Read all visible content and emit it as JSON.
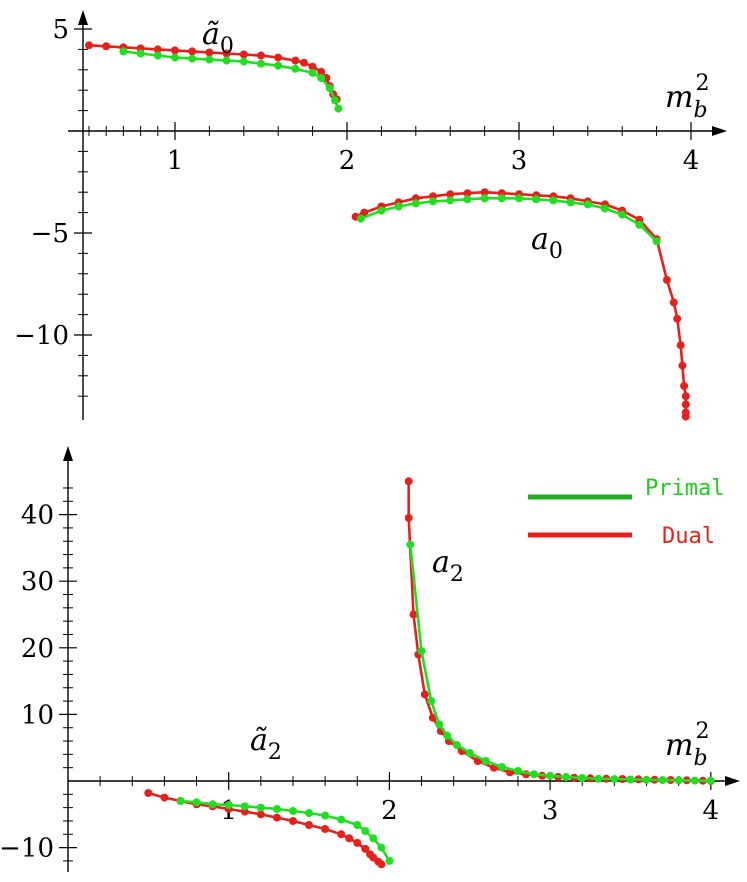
{
  "chart_data": [
    {
      "type": "line",
      "xlabel": "m_b^2",
      "ylabel": "",
      "xlim": [
        0.45,
        4.1
      ],
      "ylim": [
        -14,
        5.5
      ],
      "x_ticks": [
        1,
        2,
        3,
        4
      ],
      "y_ticks": [
        5,
        -5,
        -10
      ],
      "x_tick_labels": [
        "1",
        "2",
        "3",
        "4"
      ],
      "y_tick_labels": [
        "5",
        "−5",
        "−10"
      ],
      "curve_labels": [
        {
          "text_base": "ã",
          "text_sub": "0",
          "near_series": "ã0"
        },
        {
          "text_base": "a",
          "text_sub": "0",
          "near_series": "a0"
        }
      ],
      "axis_label_base": "m",
      "axis_label_sub": "b",
      "axis_label_sup": "2",
      "series": [
        {
          "group": "ã0",
          "method": "Dual",
          "color": "#e8201c",
          "points": [
            [
              0.5,
              4.2
            ],
            [
              0.6,
              4.15
            ],
            [
              0.7,
              4.1
            ],
            [
              0.8,
              4.05
            ],
            [
              0.9,
              4.0
            ],
            [
              1.0,
              3.95
            ],
            [
              1.1,
              3.9
            ],
            [
              1.2,
              3.85
            ],
            [
              1.3,
              3.8
            ],
            [
              1.4,
              3.75
            ],
            [
              1.5,
              3.7
            ],
            [
              1.6,
              3.6
            ],
            [
              1.7,
              3.45
            ],
            [
              1.75,
              3.35
            ],
            [
              1.8,
              3.15
            ],
            [
              1.85,
              2.9
            ],
            [
              1.88,
              2.6
            ],
            [
              1.9,
              2.2
            ],
            [
              1.92,
              1.8
            ],
            [
              1.94,
              1.55
            ]
          ]
        },
        {
          "group": "ã0",
          "method": "Primal",
          "color": "#22dd22",
          "points": [
            [
              0.7,
              3.9
            ],
            [
              0.8,
              3.8
            ],
            [
              0.9,
              3.7
            ],
            [
              1.0,
              3.6
            ],
            [
              1.1,
              3.55
            ],
            [
              1.2,
              3.5
            ],
            [
              1.3,
              3.45
            ],
            [
              1.4,
              3.4
            ],
            [
              1.5,
              3.3
            ],
            [
              1.6,
              3.2
            ],
            [
              1.7,
              3.05
            ],
            [
              1.8,
              2.85
            ],
            [
              1.85,
              2.6
            ],
            [
              1.9,
              2.1
            ],
            [
              1.93,
              1.5
            ],
            [
              1.95,
              1.1
            ]
          ]
        },
        {
          "group": "a0",
          "method": "Dual",
          "color": "#e8201c",
          "points": [
            [
              2.05,
              -4.2
            ],
            [
              2.1,
              -4.0
            ],
            [
              2.2,
              -3.7
            ],
            [
              2.3,
              -3.5
            ],
            [
              2.4,
              -3.3
            ],
            [
              2.5,
              -3.2
            ],
            [
              2.6,
              -3.1
            ],
            [
              2.7,
              -3.05
            ],
            [
              2.8,
              -3.0
            ],
            [
              2.9,
              -3.05
            ],
            [
              3.0,
              -3.1
            ],
            [
              3.1,
              -3.15
            ],
            [
              3.2,
              -3.2
            ],
            [
              3.3,
              -3.3
            ],
            [
              3.4,
              -3.45
            ],
            [
              3.5,
              -3.6
            ],
            [
              3.6,
              -3.9
            ],
            [
              3.7,
              -4.35
            ],
            [
              3.8,
              -5.3
            ],
            [
              3.86,
              -7.3
            ],
            [
              3.9,
              -8.4
            ],
            [
              3.92,
              -9.2
            ],
            [
              3.94,
              -10.5
            ],
            [
              3.95,
              -11.5
            ],
            [
              3.96,
              -12.5
            ],
            [
              3.97,
              -13.0
            ],
            [
              3.97,
              -13.4
            ],
            [
              3.97,
              -13.8
            ],
            [
              3.97,
              -14.0
            ]
          ]
        },
        {
          "group": "a0",
          "method": "Primal",
          "color": "#22dd22",
          "points": [
            [
              2.08,
              -4.3
            ],
            [
              2.2,
              -3.9
            ],
            [
              2.3,
              -3.7
            ],
            [
              2.4,
              -3.55
            ],
            [
              2.5,
              -3.45
            ],
            [
              2.6,
              -3.4
            ],
            [
              2.7,
              -3.35
            ],
            [
              2.8,
              -3.3
            ],
            [
              2.9,
              -3.3
            ],
            [
              3.0,
              -3.3
            ],
            [
              3.1,
              -3.35
            ],
            [
              3.2,
              -3.4
            ],
            [
              3.3,
              -3.5
            ],
            [
              3.4,
              -3.6
            ],
            [
              3.5,
              -3.8
            ],
            [
              3.6,
              -4.1
            ],
            [
              3.7,
              -4.6
            ],
            [
              3.8,
              -5.4
            ]
          ]
        }
      ]
    },
    {
      "type": "line",
      "xlabel": "m_b^2",
      "ylabel": "",
      "xlim": [
        0.0,
        4.1
      ],
      "ylim": [
        -14,
        48
      ],
      "x_ticks": [
        1,
        2,
        3,
        4
      ],
      "y_ticks": [
        40,
        30,
        20,
        10,
        -10
      ],
      "x_tick_labels": [
        "1",
        "2",
        "3",
        "4"
      ],
      "y_tick_labels": [
        "40",
        "30",
        "20",
        "10",
        "−10"
      ],
      "curve_labels": [
        {
          "text_base": "ã",
          "text_sub": "2",
          "near_series": "ã2"
        },
        {
          "text_base": "a",
          "text_sub": "2",
          "near_series": "a2"
        }
      ],
      "axis_label_base": "m",
      "axis_label_sub": "b",
      "axis_label_sup": "2",
      "legend": {
        "placement": "top-right",
        "entries": [
          {
            "label": "Primal",
            "color": "#22dd22"
          },
          {
            "label": "Dual",
            "color": "#e8201c"
          }
        ]
      },
      "series": [
        {
          "group": "ã2",
          "method": "Dual",
          "color": "#e8201c",
          "points": [
            [
              0.5,
              -1.8
            ],
            [
              0.6,
              -2.5
            ],
            [
              0.7,
              -3.0
            ],
            [
              0.8,
              -3.5
            ],
            [
              0.9,
              -3.8
            ],
            [
              1.0,
              -4.2
            ],
            [
              1.1,
              -4.6
            ],
            [
              1.2,
              -5.0
            ],
            [
              1.3,
              -5.5
            ],
            [
              1.4,
              -6.0
            ],
            [
              1.5,
              -6.6
            ],
            [
              1.6,
              -7.2
            ],
            [
              1.7,
              -8.0
            ],
            [
              1.75,
              -8.6
            ],
            [
              1.8,
              -9.3
            ],
            [
              1.85,
              -10.2
            ],
            [
              1.88,
              -11.0
            ],
            [
              1.9,
              -11.5
            ],
            [
              1.93,
              -12.1
            ],
            [
              1.95,
              -12.5
            ]
          ]
        },
        {
          "group": "ã2",
          "method": "Primal",
          "color": "#22dd22",
          "points": [
            [
              0.7,
              -3.0
            ],
            [
              0.8,
              -3.2
            ],
            [
              0.9,
              -3.5
            ],
            [
              1.0,
              -3.6
            ],
            [
              1.1,
              -3.8
            ],
            [
              1.2,
              -4.0
            ],
            [
              1.3,
              -4.2
            ],
            [
              1.4,
              -4.5
            ],
            [
              1.5,
              -4.8
            ],
            [
              1.6,
              -5.2
            ],
            [
              1.7,
              -5.8
            ],
            [
              1.8,
              -6.6
            ],
            [
              1.85,
              -7.5
            ],
            [
              1.9,
              -8.6
            ],
            [
              1.95,
              -10.0
            ],
            [
              2.0,
              -12.0
            ]
          ]
        },
        {
          "group": "a2",
          "method": "Dual",
          "color": "#e8201c",
          "points": [
            [
              2.12,
              45
            ],
            [
              2.12,
              39.5
            ],
            [
              2.15,
              25
            ],
            [
              2.18,
              19
            ],
            [
              2.22,
              13
            ],
            [
              2.27,
              9.5
            ],
            [
              2.32,
              7.5
            ],
            [
              2.37,
              6
            ],
            [
              2.45,
              4.5
            ],
            [
              2.55,
              3.0
            ],
            [
              2.65,
              2.0
            ],
            [
              2.75,
              1.3
            ],
            [
              2.85,
              1.0
            ],
            [
              2.95,
              0.8
            ],
            [
              3.05,
              0.6
            ],
            [
              3.15,
              0.5
            ],
            [
              3.25,
              0.4
            ],
            [
              3.35,
              0.35
            ],
            [
              3.45,
              0.3
            ],
            [
              3.55,
              0.25
            ],
            [
              3.65,
              0.2
            ],
            [
              3.75,
              0.15
            ],
            [
              3.85,
              0.1
            ],
            [
              3.95,
              0.05
            ],
            [
              4.0,
              0.0
            ]
          ]
        },
        {
          "group": "a2",
          "method": "Primal",
          "color": "#22dd22",
          "points": [
            [
              2.13,
              35.5
            ],
            [
              2.2,
              19.5
            ],
            [
              2.26,
              12
            ],
            [
              2.31,
              8.5
            ],
            [
              2.36,
              6.8
            ],
            [
              2.42,
              5.4
            ],
            [
              2.5,
              4.2
            ],
            [
              2.6,
              3.0
            ],
            [
              2.7,
              2.1
            ],
            [
              2.8,
              1.5
            ],
            [
              2.9,
              1.0
            ],
            [
              3.0,
              0.8
            ],
            [
              3.1,
              0.6
            ],
            [
              3.2,
              0.45
            ],
            [
              3.3,
              0.35
            ],
            [
              3.4,
              0.28
            ],
            [
              3.5,
              0.22
            ],
            [
              3.6,
              0.18
            ],
            [
              3.7,
              0.14
            ],
            [
              3.8,
              0.1
            ],
            [
              3.9,
              0.06
            ],
            [
              4.0,
              0.03
            ]
          ]
        }
      ]
    }
  ]
}
